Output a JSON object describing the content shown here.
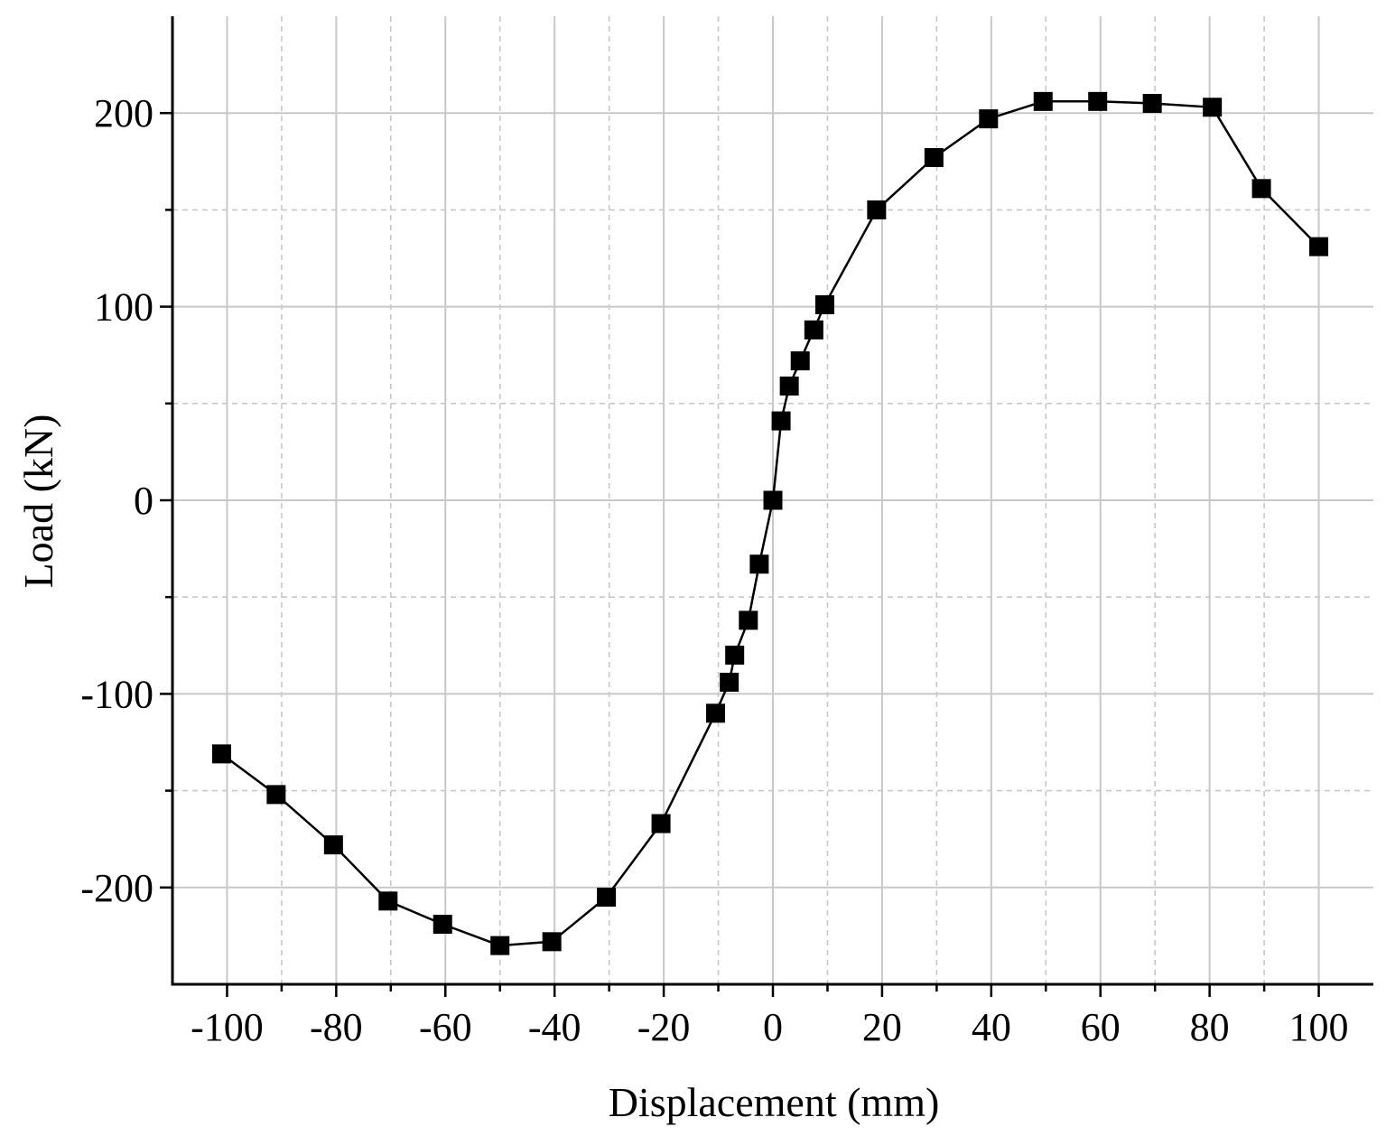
{
  "chart_data": {
    "type": "line",
    "title": "",
    "xlabel": "Displacement (mm)",
    "ylabel": "Load (kN)",
    "xlim": [
      -110,
      110
    ],
    "ylim": [
      -250,
      250
    ],
    "x_ticks": [
      "-100",
      "-80",
      "-60",
      "-40",
      "-20",
      "0",
      "20",
      "40",
      "60",
      "80",
      "100"
    ],
    "y_ticks": [
      "-200",
      "-100",
      "0",
      "100",
      "200"
    ],
    "x_tick_values": [
      -100,
      -80,
      -60,
      -40,
      -20,
      0,
      20,
      40,
      60,
      80,
      100
    ],
    "y_tick_values": [
      -200,
      -100,
      0,
      100,
      200
    ],
    "x_grid_values": [
      -100,
      -90,
      -80,
      -70,
      -60,
      -50,
      -40,
      -30,
      -20,
      -10,
      0,
      10,
      20,
      30,
      40,
      50,
      60,
      70,
      80,
      90,
      100
    ],
    "y_grid_values": [
      -200,
      -150,
      -100,
      -50,
      0,
      50,
      100,
      150,
      200
    ],
    "grid": true,
    "marker": "square",
    "colors": {
      "line": "#000000",
      "marker": "#000000",
      "grid_major": "#c8c8c8",
      "grid_minor": "#c8c8c8",
      "axis": "#000000"
    },
    "series": [
      {
        "x": [
          -101,
          -91,
          -80.5,
          -70.5,
          -60.5,
          -50,
          -40.5,
          -30.5,
          -20.5,
          -10.5,
          -8,
          -7,
          -4.5,
          -2.5,
          0,
          1.5,
          3,
          5,
          7.5,
          9.5,
          19,
          29.5,
          39.5,
          49.5,
          59.5,
          69.5,
          80.5,
          89.5,
          100
        ],
        "y": [
          -131,
          -152,
          -178,
          -207,
          -219,
          -230,
          -228,
          -205,
          -167,
          -110,
          -94,
          -80,
          -62,
          -33,
          0,
          41,
          59,
          72,
          88,
          101,
          150,
          177,
          197,
          206,
          206,
          205,
          203,
          161,
          131
        ]
      }
    ]
  }
}
